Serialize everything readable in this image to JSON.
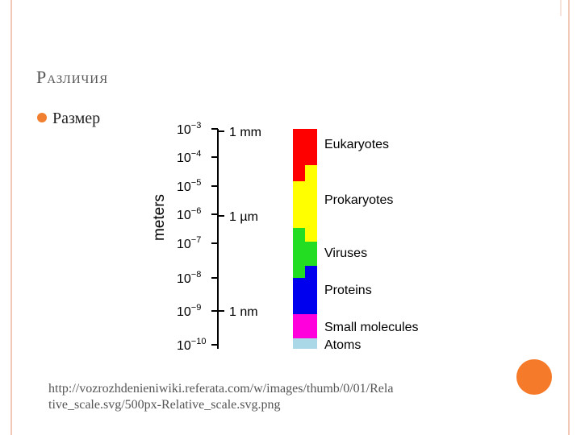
{
  "slide": {
    "title": "Различия",
    "bullet": "Размер",
    "diagram": {
      "axis_label": "meters",
      "ticks": [
        {
          "base": "10",
          "exp": "−3"
        },
        {
          "base": "10",
          "exp": "−4"
        },
        {
          "base": "10",
          "exp": "−5"
        },
        {
          "base": "10",
          "exp": "−6"
        },
        {
          "base": "10",
          "exp": "−7"
        },
        {
          "base": "10",
          "exp": "−8"
        },
        {
          "base": "10",
          "exp": "−9"
        },
        {
          "base": "10",
          "exp": "−10"
        }
      ],
      "units": [
        "1 mm",
        "1 µm",
        "1 nm"
      ],
      "groups": [
        "Eukaryotes",
        "Prokaryotes",
        "Viruses",
        "Proteins",
        "Small molecules",
        "Atoms"
      ]
    },
    "source": [
      "http://vozrozhdenieniwiki.referata.com/w/images/thumb/0/01/Rela",
      "tive_scale.svg/500px-Relative_scale.svg.png"
    ]
  }
}
